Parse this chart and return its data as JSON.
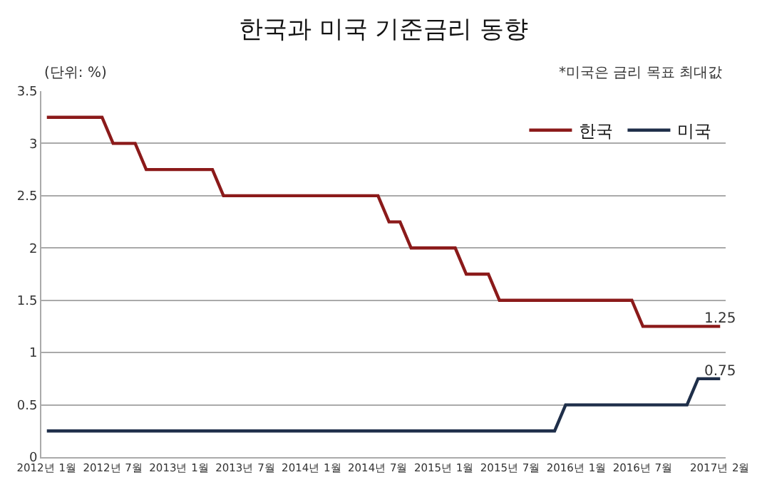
{
  "chart_data": {
    "type": "line",
    "title": "한국과 미국 기준금리 동향",
    "annotations": [
      "(단위: %)",
      "*미국은 금리 목표 최대값"
    ],
    "categories": [
      "2012년 1월",
      null,
      null,
      null,
      null,
      null,
      "2012년 7월",
      null,
      null,
      null,
      null,
      null,
      "2013년 1월",
      null,
      null,
      null,
      null,
      null,
      "2013년 7월",
      null,
      null,
      null,
      null,
      null,
      "2014년 1월",
      null,
      null,
      null,
      null,
      null,
      "2014년 7월",
      null,
      null,
      null,
      null,
      null,
      "2015년 1월",
      null,
      null,
      null,
      null,
      null,
      "2015년 7월",
      null,
      null,
      null,
      null,
      null,
      "2016년 1월",
      null,
      null,
      null,
      null,
      null,
      "2016년 7월",
      null,
      null,
      null,
      null,
      null,
      null,
      "2017년 2월"
    ],
    "series": [
      {
        "name": "한국",
        "color": "#8b1a1a",
        "values": [
          3.25,
          3.25,
          3.25,
          3.25,
          3.25,
          3.25,
          3.0,
          3.0,
          3.0,
          2.75,
          2.75,
          2.75,
          2.75,
          2.75,
          2.75,
          2.75,
          2.5,
          2.5,
          2.5,
          2.5,
          2.5,
          2.5,
          2.5,
          2.5,
          2.5,
          2.5,
          2.5,
          2.5,
          2.5,
          2.5,
          2.5,
          2.25,
          2.25,
          2.0,
          2.0,
          2.0,
          2.0,
          2.0,
          1.75,
          1.75,
          1.75,
          1.5,
          1.5,
          1.5,
          1.5,
          1.5,
          1.5,
          1.5,
          1.5,
          1.5,
          1.5,
          1.5,
          1.5,
          1.5,
          1.25,
          1.25,
          1.25,
          1.25,
          1.25,
          1.25,
          1.25,
          1.25
        ],
        "value_labels": [
          null,
          null,
          null,
          null,
          null,
          null,
          null,
          null,
          null,
          null,
          null,
          null,
          null,
          null,
          null,
          null,
          null,
          null,
          null,
          null,
          null,
          null,
          null,
          null,
          null,
          null,
          null,
          null,
          null,
          null,
          null,
          null,
          null,
          null,
          null,
          null,
          null,
          null,
          null,
          null,
          null,
          null,
          null,
          null,
          null,
          null,
          null,
          null,
          null,
          null,
          null,
          null,
          null,
          null,
          null,
          null,
          null,
          null,
          null,
          null,
          null,
          "1.25"
        ]
      },
      {
        "name": "미국",
        "color": "#1f2f4a",
        "values": [
          0.25,
          0.25,
          0.25,
          0.25,
          0.25,
          0.25,
          0.25,
          0.25,
          0.25,
          0.25,
          0.25,
          0.25,
          0.25,
          0.25,
          0.25,
          0.25,
          0.25,
          0.25,
          0.25,
          0.25,
          0.25,
          0.25,
          0.25,
          0.25,
          0.25,
          0.25,
          0.25,
          0.25,
          0.25,
          0.25,
          0.25,
          0.25,
          0.25,
          0.25,
          0.25,
          0.25,
          0.25,
          0.25,
          0.25,
          0.25,
          0.25,
          0.25,
          0.25,
          0.25,
          0.25,
          0.25,
          0.25,
          0.5,
          0.5,
          0.5,
          0.5,
          0.5,
          0.5,
          0.5,
          0.5,
          0.5,
          0.5,
          0.5,
          0.5,
          0.75,
          0.75,
          0.75
        ],
        "value_labels": [
          null,
          null,
          null,
          null,
          null,
          null,
          null,
          null,
          null,
          null,
          null,
          null,
          null,
          null,
          null,
          null,
          null,
          null,
          null,
          null,
          null,
          null,
          null,
          null,
          null,
          null,
          null,
          null,
          null,
          null,
          null,
          null,
          null,
          null,
          null,
          null,
          null,
          null,
          null,
          null,
          null,
          null,
          null,
          null,
          null,
          null,
          null,
          null,
          null,
          null,
          null,
          null,
          null,
          null,
          null,
          null,
          null,
          null,
          null,
          null,
          null,
          "0.75"
        ]
      }
    ],
    "ylim": [
      0,
      3.5
    ],
    "yticks": [
      0,
      0.5,
      1,
      1.5,
      2,
      2.5,
      3,
      3.5
    ],
    "grid": "y",
    "legend": "top right",
    "marker": "none",
    "line_style": "solid"
  }
}
